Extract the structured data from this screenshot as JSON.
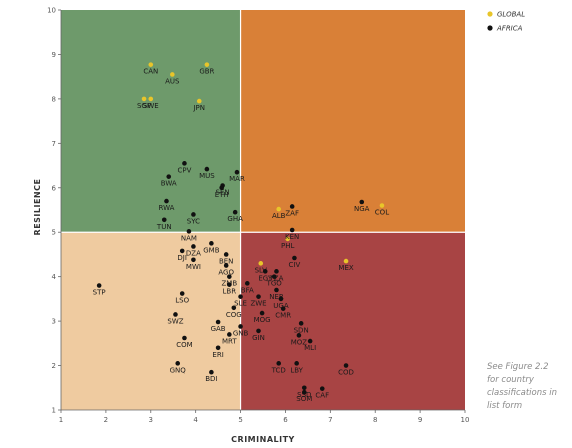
{
  "chart_data": {
    "type": "scatter",
    "xlabel": "CRIMINALITY",
    "ylabel": "RESILIENCE",
    "xlim": [
      1,
      10
    ],
    "ylim": [
      1,
      10
    ],
    "xticks": [
      1,
      2,
      3,
      4,
      5,
      6,
      7,
      8,
      9,
      10
    ],
    "yticks": [
      1,
      2,
      3,
      4,
      5,
      6,
      7,
      8,
      9,
      10
    ],
    "quadrant_split": {
      "x": 5,
      "y": 5
    },
    "quadrant_colors": {
      "top_left": "#6e9a6b",
      "top_right": "#d98037",
      "bottom_left": "#efcba0",
      "bottom_right": "#a84444"
    },
    "legend": {
      "position": "top-right",
      "entries": [
        {
          "name": "GLOBAL",
          "color": "#e8c52a"
        },
        {
          "name": "AFRICA",
          "color": "#111111"
        }
      ]
    },
    "series": [
      {
        "name": "GLOBAL",
        "color": "#e8c52a",
        "points": [
          {
            "label": "CAN",
            "x": 3.0,
            "y": 8.77
          },
          {
            "label": "AUS",
            "x": 3.48,
            "y": 8.55
          },
          {
            "label": "GBR",
            "x": 4.25,
            "y": 8.77
          },
          {
            "label": "SWE",
            "x": 3.0,
            "y": 8.0
          },
          {
            "label": "SGP",
            "x": 2.85,
            "y": 8.0
          },
          {
            "label": "JPN",
            "x": 4.08,
            "y": 7.95
          },
          {
            "label": "ALB",
            "x": 5.85,
            "y": 5.52
          },
          {
            "label": "PHL",
            "x": 6.05,
            "y": 4.85
          },
          {
            "label": "SLV",
            "x": 5.45,
            "y": 4.3
          },
          {
            "label": "MEX",
            "x": 7.35,
            "y": 4.35
          },
          {
            "label": "COL",
            "x": 8.15,
            "y": 5.6
          }
        ]
      },
      {
        "name": "AFRICA",
        "color": "#111111",
        "points": [
          {
            "label": "MAR",
            "x": 4.92,
            "y": 6.35
          },
          {
            "label": "CPV",
            "x": 3.75,
            "y": 6.55
          },
          {
            "label": "MUS",
            "x": 4.25,
            "y": 6.42
          },
          {
            "label": "BWA",
            "x": 3.4,
            "y": 6.25
          },
          {
            "label": "SEN",
            "x": 4.6,
            "y": 6.05
          },
          {
            "label": "ETH",
            "x": 4.58,
            "y": 6.0
          },
          {
            "label": "RWA",
            "x": 3.35,
            "y": 5.7
          },
          {
            "label": "SYC",
            "x": 3.95,
            "y": 5.4
          },
          {
            "label": "GHA",
            "x": 4.88,
            "y": 5.45
          },
          {
            "label": "TUN",
            "x": 3.3,
            "y": 5.28
          },
          {
            "label": "ZAF",
            "x": 6.15,
            "y": 5.58
          },
          {
            "label": "NGA",
            "x": 7.7,
            "y": 5.68
          },
          {
            "label": "KEN",
            "x": 6.15,
            "y": 5.05
          },
          {
            "label": "NAM",
            "x": 3.85,
            "y": 5.02
          },
          {
            "label": "GMB",
            "x": 4.35,
            "y": 4.75
          },
          {
            "label": "DZA",
            "x": 3.95,
            "y": 4.68
          },
          {
            "label": "DJI",
            "x": 3.7,
            "y": 4.58
          },
          {
            "label": "BEN",
            "x": 4.68,
            "y": 4.5
          },
          {
            "label": "MWI",
            "x": 3.95,
            "y": 4.38
          },
          {
            "label": "CIV",
            "x": 6.2,
            "y": 4.42
          },
          {
            "label": "AGO",
            "x": 4.68,
            "y": 4.25
          },
          {
            "label": "EGY",
            "x": 5.55,
            "y": 4.12
          },
          {
            "label": "TZA",
            "x": 5.8,
            "y": 4.12
          },
          {
            "label": "TGO",
            "x": 5.75,
            "y": 4.0
          },
          {
            "label": "ZMB",
            "x": 4.75,
            "y": 4.0
          },
          {
            "label": "BFA",
            "x": 5.15,
            "y": 3.85
          },
          {
            "label": "LBR",
            "x": 4.75,
            "y": 3.82
          },
          {
            "label": "NER",
            "x": 5.8,
            "y": 3.7
          },
          {
            "label": "SLE",
            "x": 5.0,
            "y": 3.55
          },
          {
            "label": "ZWE",
            "x": 5.4,
            "y": 3.55
          },
          {
            "label": "UGA",
            "x": 5.9,
            "y": 3.5
          },
          {
            "label": "LSO",
            "x": 3.7,
            "y": 3.62
          },
          {
            "label": "STP",
            "x": 1.85,
            "y": 3.8
          },
          {
            "label": "COG",
            "x": 4.85,
            "y": 3.3
          },
          {
            "label": "SWZ",
            "x": 3.55,
            "y": 3.15
          },
          {
            "label": "MOG",
            "x": 5.48,
            "y": 3.18
          },
          {
            "label": "CMR",
            "x": 5.95,
            "y": 3.28
          },
          {
            "label": "GAB",
            "x": 4.5,
            "y": 2.98
          },
          {
            "label": "GNB",
            "x": 5.0,
            "y": 2.88
          },
          {
            "label": "SDN",
            "x": 6.35,
            "y": 2.95
          },
          {
            "label": "COM",
            "x": 3.75,
            "y": 2.62
          },
          {
            "label": "GIN",
            "x": 5.4,
            "y": 2.78
          },
          {
            "label": "MOZ",
            "x": 6.3,
            "y": 2.68
          },
          {
            "label": "MRT",
            "x": 4.75,
            "y": 2.7
          },
          {
            "label": "MLI",
            "x": 6.55,
            "y": 2.55
          },
          {
            "label": "ERI",
            "x": 4.5,
            "y": 2.4
          },
          {
            "label": "GNQ",
            "x": 3.6,
            "y": 2.05
          },
          {
            "label": "COD",
            "x": 7.35,
            "y": 2.0
          },
          {
            "label": "TCD",
            "x": 5.85,
            "y": 2.05
          },
          {
            "label": "LBY",
            "x": 6.25,
            "y": 2.05
          },
          {
            "label": "BDI",
            "x": 4.35,
            "y": 1.85
          },
          {
            "label": "SSD",
            "x": 6.42,
            "y": 1.5
          },
          {
            "label": "CAF",
            "x": 6.82,
            "y": 1.48
          },
          {
            "label": "SOM",
            "x": 6.42,
            "y": 1.4
          }
        ]
      }
    ]
  },
  "note": {
    "lines": [
      "See Figure 2.2",
      "for country",
      "classifications in",
      "list form"
    ]
  }
}
